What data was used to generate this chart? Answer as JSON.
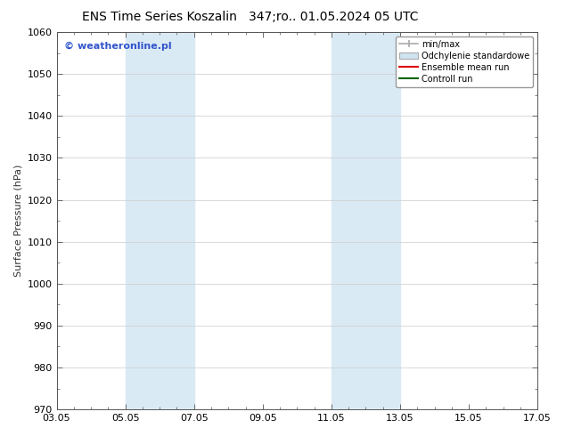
{
  "title_left": "ENS Time Series Koszalin",
  "title_right": "347;ro.. 01.05.2024 05 UTC",
  "ylabel": "Surface Pressure (hPa)",
  "ylim": [
    970,
    1060
  ],
  "yticks": [
    970,
    980,
    990,
    1000,
    1010,
    1020,
    1030,
    1040,
    1050,
    1060
  ],
  "xlim_start": 0,
  "xlim_end": 14,
  "xtick_labels": [
    "03.05",
    "05.05",
    "07.05",
    "09.05",
    "11.05",
    "13.05",
    "15.05",
    "17.05"
  ],
  "xtick_positions": [
    0,
    2,
    4,
    6,
    8,
    10,
    12,
    14
  ],
  "shaded_regions": [
    {
      "xmin": 2,
      "xmax": 4,
      "color": "#daeaf5"
    },
    {
      "xmin": 8,
      "xmax": 10,
      "color": "#daeaf5"
    }
  ],
  "watermark_text": "© weatheronline.pl",
  "watermark_color": "#3355cc",
  "legend_entries": [
    {
      "label": "min/max",
      "color": "#aaaaaa",
      "style": "line_with_caps"
    },
    {
      "label": "Odchylenie standardowe",
      "color": "#d0e4f0",
      "style": "filled_box"
    },
    {
      "label": "Ensemble mean run",
      "color": "#dd0000",
      "style": "line"
    },
    {
      "label": "Controll run",
      "color": "#006600",
      "style": "line"
    }
  ],
  "background_color": "#ffffff",
  "grid_color": "#cccccc",
  "title_fontsize": 10,
  "axis_fontsize": 8,
  "tick_fontsize": 8,
  "legend_fontsize": 7
}
